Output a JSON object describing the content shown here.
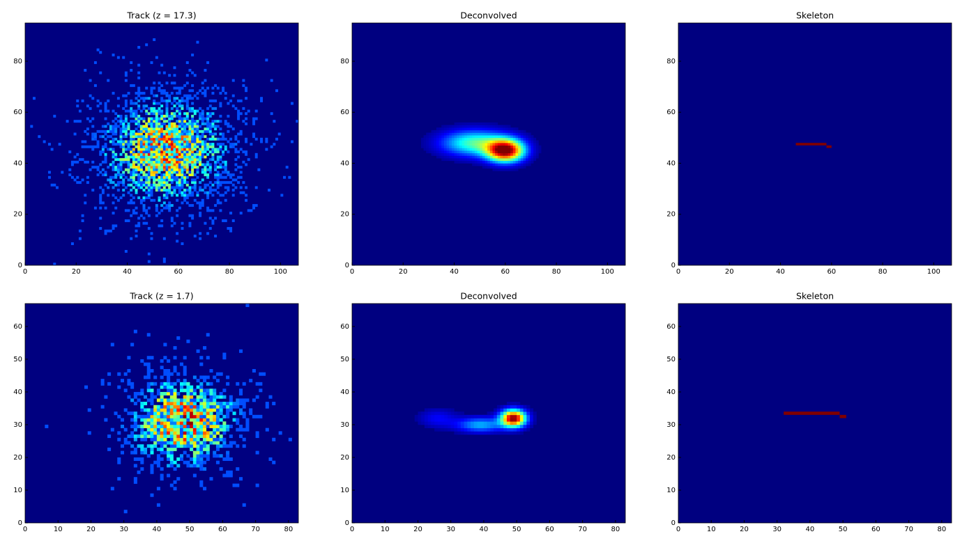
{
  "chart_data": [
    {
      "type": "heatmap",
      "title": "Track (z = 17.3)",
      "colormap": "jet",
      "noise": true,
      "xlim": [
        0,
        107
      ],
      "ylim": [
        0,
        95
      ],
      "xticks": [
        0,
        20,
        40,
        60,
        80,
        100
      ],
      "yticks": [
        0,
        20,
        40,
        60,
        80
      ],
      "blobs": [
        {
          "x": 55,
          "y": 45,
          "sx": 17,
          "sy": 14,
          "peak": 0.6
        }
      ]
    },
    {
      "type": "heatmap",
      "title": "Deconvolved",
      "colormap": "jet",
      "noise": false,
      "xlim": [
        0,
        107
      ],
      "ylim": [
        0,
        95
      ],
      "xticks": [
        0,
        20,
        40,
        60,
        80,
        100
      ],
      "yticks": [
        0,
        20,
        40,
        60,
        80
      ],
      "blobs": [
        {
          "x": 60,
          "y": 45,
          "sx": 5,
          "sy": 3,
          "peak": 1
        },
        {
          "x": 48,
          "y": 48,
          "sx": 9,
          "sy": 3.5,
          "peak": 0.45
        }
      ]
    },
    {
      "type": "skeleton",
      "title": "Skeleton",
      "colormap": "jet",
      "xlim": [
        0,
        107
      ],
      "ylim": [
        0,
        95
      ],
      "xticks": [
        0,
        20,
        40,
        60,
        80,
        100
      ],
      "yticks": [
        0,
        20,
        40,
        60,
        80
      ],
      "segments": [
        [
          46,
          58,
          47
        ],
        [
          58,
          60,
          46
        ]
      ]
    },
    {
      "type": "heatmap",
      "title": "Track (z = 1.7)",
      "colormap": "jet",
      "noise": true,
      "xlim": [
        0,
        83
      ],
      "ylim": [
        0,
        67
      ],
      "xticks": [
        0,
        10,
        20,
        30,
        40,
        50,
        60,
        70,
        80
      ],
      "yticks": [
        0,
        10,
        20,
        30,
        40,
        50,
        60
      ],
      "blobs": [
        {
          "x": 48,
          "y": 31,
          "sx": 11,
          "sy": 9,
          "peak": 0.65
        }
      ]
    },
    {
      "type": "heatmap",
      "title": "Deconvolved",
      "colormap": "jet",
      "noise": false,
      "xlim": [
        0,
        83
      ],
      "ylim": [
        0,
        67
      ],
      "xticks": [
        0,
        10,
        20,
        30,
        40,
        50,
        60,
        70,
        80
      ],
      "yticks": [
        0,
        10,
        20,
        30,
        40,
        50,
        60
      ],
      "blobs": [
        {
          "x": 49,
          "y": 32,
          "sx": 2.6,
          "sy": 1.8,
          "peak": 1
        },
        {
          "x": 39,
          "y": 30,
          "sx": 5,
          "sy": 1.6,
          "peak": 0.3
        },
        {
          "x": 26,
          "y": 32,
          "sx": 4,
          "sy": 2,
          "peak": 0.12
        }
      ]
    },
    {
      "type": "skeleton",
      "title": "Skeleton",
      "colormap": "jet",
      "xlim": [
        0,
        83
      ],
      "ylim": [
        0,
        67
      ],
      "xticks": [
        0,
        10,
        20,
        30,
        40,
        50,
        60,
        70,
        80
      ],
      "yticks": [
        0,
        10,
        20,
        30,
        40,
        50,
        60
      ],
      "segments": [
        [
          32,
          49,
          33
        ],
        [
          49,
          51,
          32
        ]
      ]
    }
  ]
}
